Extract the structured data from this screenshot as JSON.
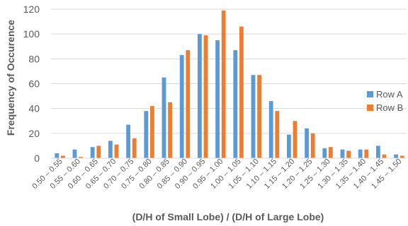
{
  "chart_data": {
    "type": "bar",
    "title": "",
    "xlabel": "(D/H of Small Lobe) / (D/H of Large Lobe)",
    "ylabel": "Frequency of Occurence",
    "ylim": [
      0,
      120
    ],
    "yticks": [
      0,
      20,
      40,
      60,
      80,
      100,
      120
    ],
    "grid": "horizontal",
    "legend_position": "right",
    "categories": [
      "0.50 – 0.55",
      "0.55 – 0.60",
      "0.60 – 0.65",
      "0.65 – 0.70",
      "0.70 – 0.75",
      "0.75 – 0.80",
      "0.80 – 0.85",
      "0.85 – 0.90",
      "0.90 – 0.95",
      "0.95 – 1.00",
      "1.00 – 1.05",
      "1.05 – 1.10",
      "1.10 – 1.15",
      "1.15 – 1.20",
      "1.20 – 1.25",
      "1.25 – 1.30",
      "1.30 – 1.35",
      "1.35 – 1.40",
      "1.40 – 1.45",
      "1.45 – 1.50"
    ],
    "series": [
      {
        "name": "Row A",
        "color": "#5B9BD5",
        "values": [
          4,
          7,
          9,
          14,
          27,
          38,
          65,
          83,
          100,
          95,
          87,
          67,
          46,
          19,
          24,
          8,
          7,
          7,
          10,
          3
        ]
      },
      {
        "name": "Row B",
        "color": "#ED7D31",
        "values": [
          2,
          1,
          10,
          11,
          16,
          42,
          45,
          87,
          99,
          119,
          106,
          67,
          38,
          30,
          20,
          9,
          6,
          7,
          3,
          2
        ]
      }
    ]
  }
}
